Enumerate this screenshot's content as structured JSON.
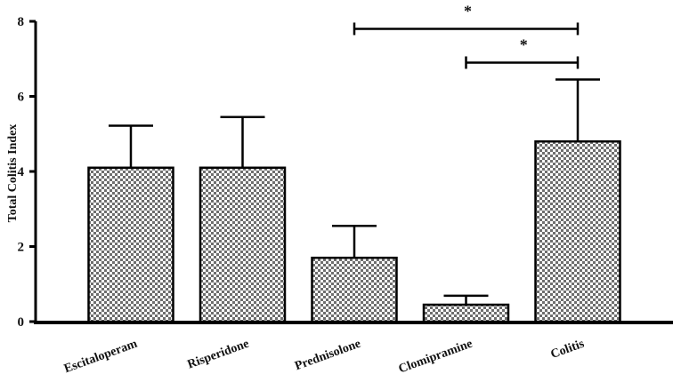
{
  "chart_data": {
    "type": "bar",
    "title": "",
    "xlabel": "",
    "ylabel": "Total Colitis Index",
    "ylim": [
      0,
      8
    ],
    "yticks": [
      "0",
      "2",
      "4",
      "6",
      "8"
    ],
    "categories": [
      "Escitaloperam",
      "Risperidone",
      "Prednisolone",
      "Clomipramine",
      "Colitis"
    ],
    "values": [
      4.1,
      4.1,
      1.7,
      0.45,
      4.8
    ],
    "errors": [
      1.12,
      1.35,
      0.85,
      0.24,
      1.65
    ],
    "grid": false,
    "bar_pattern": "checkered",
    "bar_color": "#7a7a7a",
    "significance": [
      {
        "from": "Prednisolone",
        "to": "Colitis",
        "y": 7.8,
        "label": "*"
      },
      {
        "from": "Clomipramine",
        "to": "Colitis",
        "y": 6.9,
        "label": "*"
      }
    ]
  }
}
